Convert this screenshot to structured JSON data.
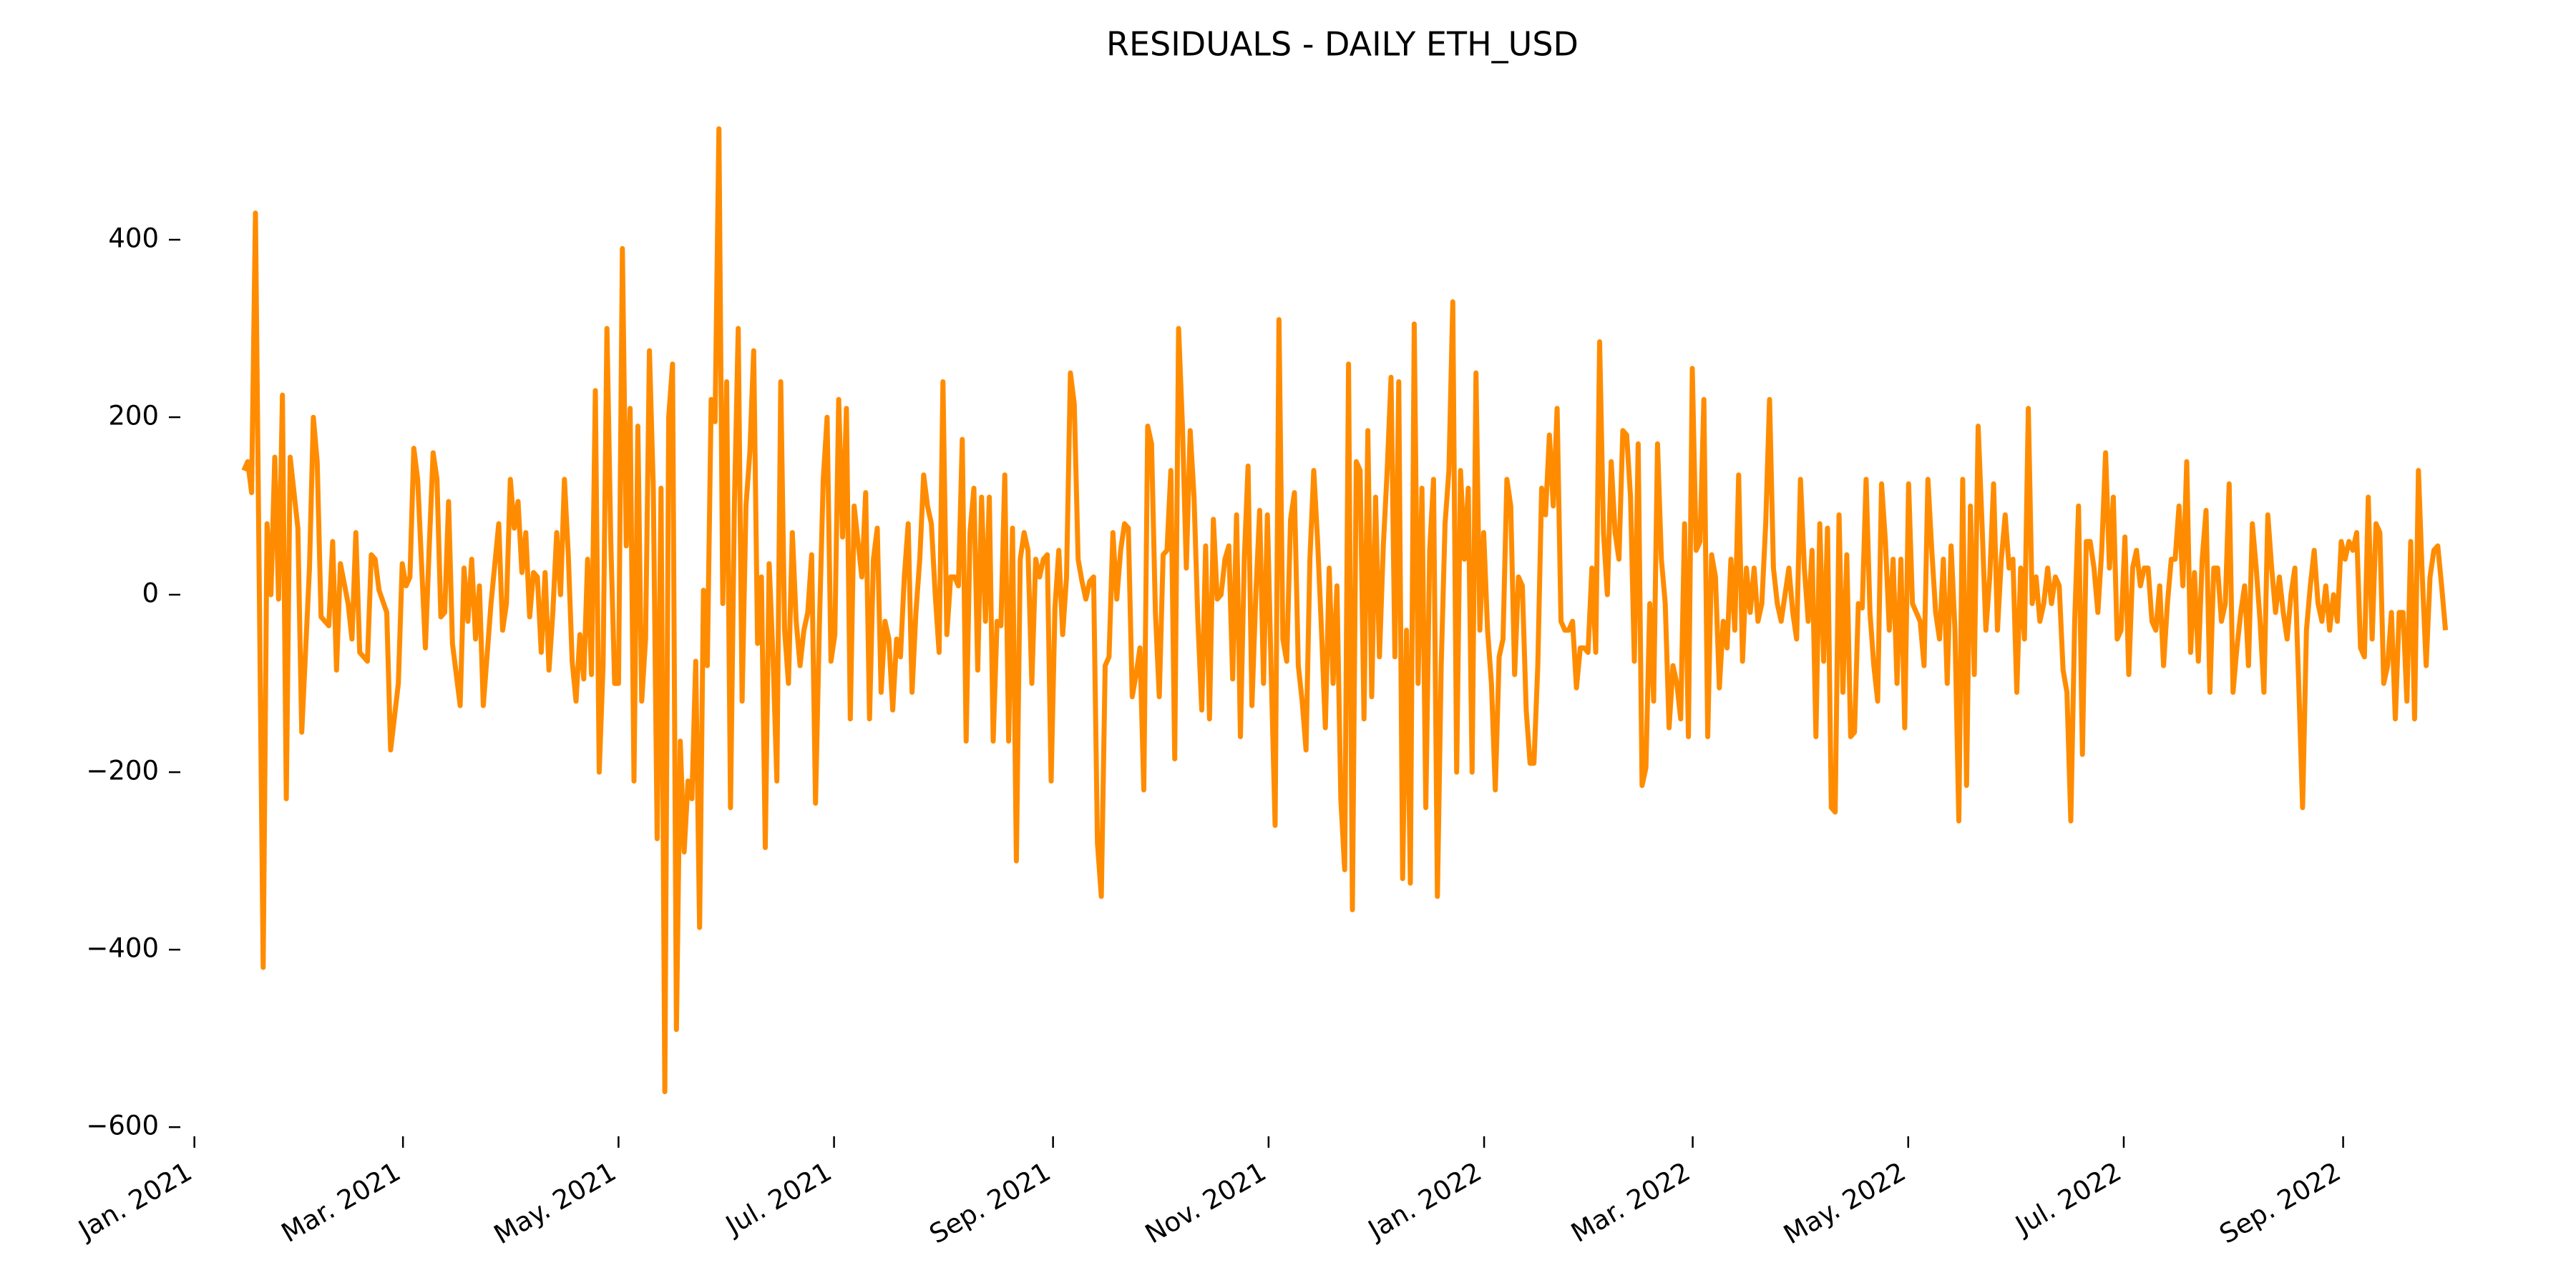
{
  "chart_data": {
    "type": "line",
    "title": "RESIDUALS - DAILY ETH_USD",
    "xlim": [
      -3,
      600
    ],
    "xticks": [
      {
        "value": 1.2,
        "label": "Jan. 2021"
      },
      {
        "value": 55.2,
        "label": "Mar. 2021"
      },
      {
        "value": 111,
        "label": "May. 2021"
      },
      {
        "value": 166.8,
        "label": "Jul. 2021"
      },
      {
        "value": 223.5,
        "label": "Sep. 2021"
      },
      {
        "value": 279.3,
        "label": "Nov. 2021"
      },
      {
        "value": 335.1,
        "label": "Jan. 2022"
      },
      {
        "value": 389.1,
        "label": "Mar. 2022"
      },
      {
        "value": 444.9,
        "label": "May. 2022"
      },
      {
        "value": 500.7,
        "label": "Jul. 2022"
      },
      {
        "value": 557.5,
        "label": "Sep. 2022"
      }
    ],
    "ylim": [
      -620,
      575
    ],
    "yticks": [
      {
        "value": -600,
        "label": "−600"
      },
      {
        "value": -400,
        "label": "−400"
      },
      {
        "value": -200,
        "label": "−200"
      },
      0,
      200,
      400
    ],
    "grid": false,
    "x": [
      14,
      15,
      16,
      17,
      19,
      20,
      21,
      22,
      23,
      24,
      25,
      26,
      28,
      29,
      31,
      32,
      33,
      34,
      36,
      37,
      38,
      39,
      41,
      42,
      43,
      44,
      46,
      47,
      48,
      49,
      51,
      52,
      54,
      55,
      56,
      57,
      58,
      59,
      61,
      62,
      63,
      64,
      65,
      66,
      67,
      68,
      70,
      71,
      72,
      73,
      74,
      75,
      76,
      78,
      80,
      81,
      82,
      83,
      84,
      85,
      86,
      87,
      88,
      89,
      90,
      91,
      92,
      93,
      94,
      95,
      96,
      97,
      98,
      99,
      100,
      101,
      102,
      103,
      104,
      105,
      106,
      107,
      108,
      109,
      110,
      111,
      112,
      113,
      114,
      115,
      116,
      117,
      118,
      119,
      120,
      121,
      122,
      123,
      124,
      125,
      126,
      127,
      128,
      129,
      130,
      131,
      132,
      133,
      134,
      135,
      136,
      137,
      138,
      139,
      140,
      141,
      142,
      143,
      144,
      145,
      146,
      147,
      148,
      149,
      150,
      151,
      152,
      153,
      154,
      155,
      156,
      157,
      158,
      159,
      160,
      161,
      162,
      163,
      164,
      165,
      166,
      167,
      168,
      169,
      170,
      171,
      172,
      173,
      174,
      175,
      176,
      177,
      178,
      179,
      180,
      181,
      182,
      183,
      184,
      185,
      186,
      187,
      188,
      189,
      190,
      191,
      192,
      193,
      194,
      195,
      196,
      197,
      198,
      199,
      200,
      201,
      202,
      203,
      204,
      205,
      206,
      207,
      208,
      209,
      210,
      211,
      212,
      213,
      214,
      215,
      216,
      217,
      218,
      219,
      220,
      221,
      222,
      223,
      224,
      225,
      226,
      227,
      228,
      229,
      230,
      231,
      232,
      233,
      234,
      235,
      236,
      237,
      238,
      239,
      240,
      241,
      242,
      243,
      244,
      245,
      246,
      247,
      248,
      249,
      250,
      251,
      252,
      253,
      254,
      255,
      256,
      257,
      258,
      259,
      260,
      261,
      262,
      263,
      264,
      265,
      266,
      267,
      268,
      269,
      270,
      271,
      272,
      273,
      274,
      275,
      276,
      277,
      278,
      279,
      280,
      281,
      282,
      283,
      284,
      285,
      286,
      287,
      288,
      289,
      290,
      291,
      292,
      293,
      294,
      295,
      296,
      297,
      298,
      299,
      300,
      301,
      302,
      303,
      304,
      305,
      306,
      307,
      308,
      309,
      310,
      311,
      312,
      313,
      314,
      315,
      316,
      317,
      318,
      319,
      320,
      321,
      322,
      323,
      324,
      325,
      326,
      327,
      328,
      329,
      330,
      331,
      332,
      333,
      334,
      335,
      336,
      337,
      338,
      339,
      340,
      341,
      342,
      343,
      344,
      345,
      346,
      347,
      348,
      349,
      350,
      351,
      352,
      353,
      354,
      355,
      356,
      357,
      358,
      359,
      360,
      361,
      362,
      363,
      364,
      365,
      366,
      367,
      368,
      369,
      370,
      371,
      372,
      373,
      374,
      375,
      376,
      377,
      378,
      379,
      380,
      381,
      382,
      383,
      384,
      385,
      386,
      387,
      388,
      389,
      390,
      391,
      392,
      393,
      394,
      395,
      396,
      397,
      398,
      399,
      400,
      401,
      402,
      403,
      404,
      405,
      406,
      407,
      408,
      409,
      410,
      411,
      412,
      413,
      414,
      415,
      416,
      417,
      418,
      419,
      420,
      421,
      422,
      423,
      424,
      425,
      426,
      427,
      428,
      429,
      430,
      431,
      432,
      433,
      434,
      435,
      436,
      437,
      438,
      439,
      440,
      441,
      442,
      443,
      444,
      445,
      446,
      447,
      448,
      449,
      450,
      451,
      452,
      453,
      454,
      455,
      456,
      457,
      458,
      459,
      460,
      461,
      462,
      463,
      464,
      465,
      466,
      467,
      468,
      469,
      470,
      471,
      472,
      473,
      474,
      475,
      476,
      477,
      478,
      479,
      480,
      481,
      482,
      483,
      484,
      485,
      486,
      487,
      488,
      489,
      490,
      491,
      492,
      493,
      494,
      495,
      496,
      497,
      498,
      499,
      500,
      501,
      502,
      503,
      504,
      505,
      506,
      507,
      508,
      509,
      510,
      511,
      512,
      513,
      514,
      515,
      516,
      517,
      518,
      519,
      520,
      521,
      522,
      523,
      524,
      525,
      526,
      527,
      528,
      529,
      530,
      531,
      532,
      533,
      534,
      535,
      536,
      537,
      538,
      539,
      540,
      541,
      542,
      543,
      544,
      545,
      546,
      547,
      548,
      549,
      550,
      551,
      552,
      553,
      554,
      555,
      556,
      557,
      558,
      559,
      560,
      561,
      562,
      563,
      564,
      565,
      566,
      567,
      568,
      569,
      570,
      571,
      572,
      573,
      574,
      575,
      576,
      577,
      578,
      579,
      580,
      581,
      582,
      583,
      584
    ],
    "series": [
      {
        "color": "#ff8c00",
        "values": [
          140,
          150,
          115,
          430,
          -420,
          80,
          0,
          155,
          -5,
          225,
          -230,
          155,
          75,
          -155,
          30,
          200,
          150,
          -25,
          -35,
          60,
          -85,
          35,
          -10,
          -50,
          70,
          -65,
          -75,
          45,
          40,
          5,
          -20,
          -175,
          -100,
          35,
          10,
          20,
          165,
          130,
          -60,
          55,
          160,
          130,
          -25,
          -20,
          105,
          -55,
          -125,
          30,
          -30,
          40,
          -50,
          10,
          -125,
          -10,
          80,
          -40,
          -10,
          130,
          75,
          105,
          25,
          70,
          -25,
          25,
          20,
          -65,
          25,
          -85,
          -20,
          70,
          0,
          130,
          45,
          -75,
          -120,
          -45,
          -95,
          40,
          -90,
          230,
          -200,
          -80,
          300,
          60,
          -100,
          -100,
          390,
          55,
          210,
          -210,
          190,
          -120,
          -50,
          275,
          120,
          -275,
          120,
          -560,
          200,
          260,
          -490,
          -165,
          -290,
          -210,
          -230,
          -75,
          -375,
          5,
          -80,
          220,
          195,
          525,
          -10,
          240,
          -240,
          100,
          300,
          -120,
          100,
          160,
          275,
          -55,
          20,
          -285,
          35,
          -70,
          -210,
          240,
          -40,
          -100,
          70,
          -30,
          -80,
          -40,
          -20,
          45,
          -235,
          -35,
          130,
          200,
          -75,
          -45,
          220,
          65,
          210,
          -140,
          100,
          60,
          20,
          115,
          -140,
          40,
          75,
          -110,
          -30,
          -50,
          -130,
          -50,
          -70,
          20,
          80,
          -110,
          -20,
          40,
          135,
          100,
          80,
          0,
          -65,
          240,
          -45,
          20,
          20,
          10,
          175,
          -165,
          70,
          120,
          -85,
          110,
          -30,
          110,
          -165,
          -30,
          -35,
          135,
          -165,
          75,
          -300,
          40,
          70,
          50,
          -100,
          40,
          20,
          40,
          45,
          -210,
          -15,
          50,
          -45,
          20,
          250,
          215,
          40,
          15,
          -5,
          15,
          20,
          -280,
          -340,
          -80,
          -70,
          70,
          -5,
          50,
          80,
          75,
          -115,
          -90,
          -60,
          -220,
          190,
          170,
          -20,
          -115,
          45,
          50,
          140,
          -185,
          300,
          190,
          30,
          185,
          110,
          -30,
          -130,
          55,
          -140,
          85,
          -5,
          0,
          40,
          55,
          -95,
          90,
          -160,
          40,
          145,
          -125,
          0,
          95,
          -100,
          90,
          -90,
          -260,
          310,
          -50,
          -75,
          85,
          115,
          -80,
          -120,
          -175,
          40,
          140,
          60,
          -40,
          -150,
          30,
          -100,
          10,
          -230,
          -310,
          260,
          -355,
          150,
          140,
          -140,
          185,
          -115,
          110,
          -70,
          55,
          140,
          245,
          -70,
          240,
          -320,
          -40,
          -325,
          305,
          -100,
          120,
          -240,
          50,
          130,
          -340,
          -80,
          80,
          140,
          330,
          -200,
          140,
          40,
          120,
          -200,
          250,
          -40,
          70,
          -40,
          -100,
          -220,
          -70,
          -50,
          130,
          100,
          -90,
          20,
          10,
          -130,
          -190,
          -190,
          -80,
          120,
          90,
          180,
          100,
          210,
          -30,
          -40,
          -40,
          -30,
          -105,
          -60,
          -60,
          -65,
          30,
          -65,
          285,
          70,
          0,
          150,
          70,
          40,
          185,
          180,
          110,
          -75,
          170,
          -215,
          -195,
          -10,
          -120,
          170,
          40,
          -10,
          -150,
          -80,
          -100,
          -140,
          80,
          -160,
          255,
          50,
          60,
          220,
          -160,
          45,
          20,
          -105,
          -30,
          -60,
          40,
          -40,
          135,
          -75,
          30,
          -20,
          30,
          -30,
          -10,
          80,
          220,
          30,
          -10,
          -30,
          0,
          30,
          -20,
          -50,
          130,
          30,
          -30,
          50,
          -160,
          80,
          -75,
          75,
          -240,
          -245,
          90,
          -110,
          45,
          -160,
          -155,
          -10,
          -15,
          130,
          -20,
          -80,
          -120,
          125,
          60,
          -40,
          40,
          -100,
          40,
          -150,
          125,
          -10,
          -20,
          -30,
          -80,
          130,
          50,
          -20,
          -50,
          40,
          -100,
          55,
          -40,
          -255,
          130,
          -215,
          100,
          -90,
          190,
          80,
          -40,
          20,
          125,
          -40,
          40,
          90,
          30,
          40,
          -110,
          30,
          -50,
          210,
          -10,
          20,
          -30,
          -10,
          30,
          -10,
          20,
          10,
          -85,
          -110,
          -255,
          -30,
          100,
          -180,
          60,
          60,
          30,
          -20,
          50,
          160,
          30,
          110,
          -50,
          -40,
          65,
          -90,
          30,
          50,
          10,
          30,
          30,
          -30,
          -40,
          10,
          -80,
          -10,
          40,
          40,
          100,
          10,
          150,
          -65,
          25,
          -75,
          40,
          95,
          -110,
          30,
          30,
          -30,
          -10,
          125,
          -110,
          -60,
          -20,
          10,
          -80,
          80,
          30,
          -30,
          -110,
          90,
          30,
          -20,
          20,
          -20,
          -50,
          0,
          30,
          -100,
          -240,
          -40,
          10,
          50,
          -10,
          -30,
          10,
          -40,
          0,
          -30,
          60,
          40,
          60,
          50,
          70,
          -60,
          -70,
          110,
          -50,
          80,
          70,
          -100,
          -80,
          -20,
          -140,
          -20,
          -20,
          -120,
          60,
          -140,
          140,
          20,
          -80,
          20,
          50,
          55,
          10,
          -40
        ]
      }
    ]
  }
}
